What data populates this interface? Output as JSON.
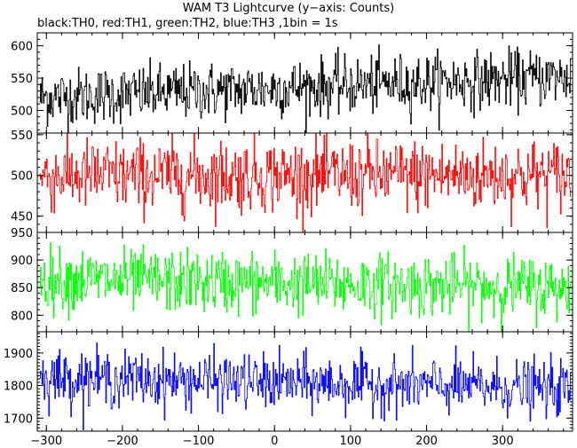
{
  "title": "WAM T3 Lightcurve (y−axis: Counts)",
  "subtitle": "black:TH0, red:TH1, green:TH2, blue:TH3 ,1bin = 1s",
  "chart_data": {
    "type": "line",
    "x_range": [
      -312,
      392
    ],
    "x_ticks": [
      -300,
      -200,
      -100,
      0,
      100,
      200,
      300
    ],
    "x_tick_labels": [
      "−300",
      "−200",
      "−100",
      "0",
      "100",
      "200",
      "300"
    ],
    "grid": false,
    "series": [
      {
        "name": "TH0",
        "color": "#000000",
        "ylim": [
          465,
          620
        ],
        "y_ticks": [
          500,
          550,
          600
        ],
        "mean_start": 520,
        "mean_end": 552,
        "noise_sigma": 22,
        "range_observed": [
          470,
          620
        ]
      },
      {
        "name": "TH1",
        "color": "#ff0000",
        "ylim": [
          430,
          552
        ],
        "y_ticks": [
          450,
          500,
          550
        ],
        "mean_start": 500,
        "mean_end": 500,
        "noise_sigma": 22,
        "range_observed": [
          440,
          552
        ]
      },
      {
        "name": "TH2",
        "color": "#00ff00",
        "ylim": [
          770,
          950
        ],
        "y_ticks": [
          800,
          850,
          900,
          950
        ],
        "mean_start": 865,
        "mean_end": 850,
        "noise_sigma": 28,
        "range_observed": [
          775,
          950
        ]
      },
      {
        "name": "TH3",
        "color": "#0000ff",
        "ylim": [
          1660,
          1965
        ],
        "y_ticks": [
          1700,
          1800,
          1900
        ],
        "mean_start": 1825,
        "mean_end": 1790,
        "noise_sigma": 42,
        "range_observed": [
          1680,
          1960
        ]
      }
    ]
  }
}
